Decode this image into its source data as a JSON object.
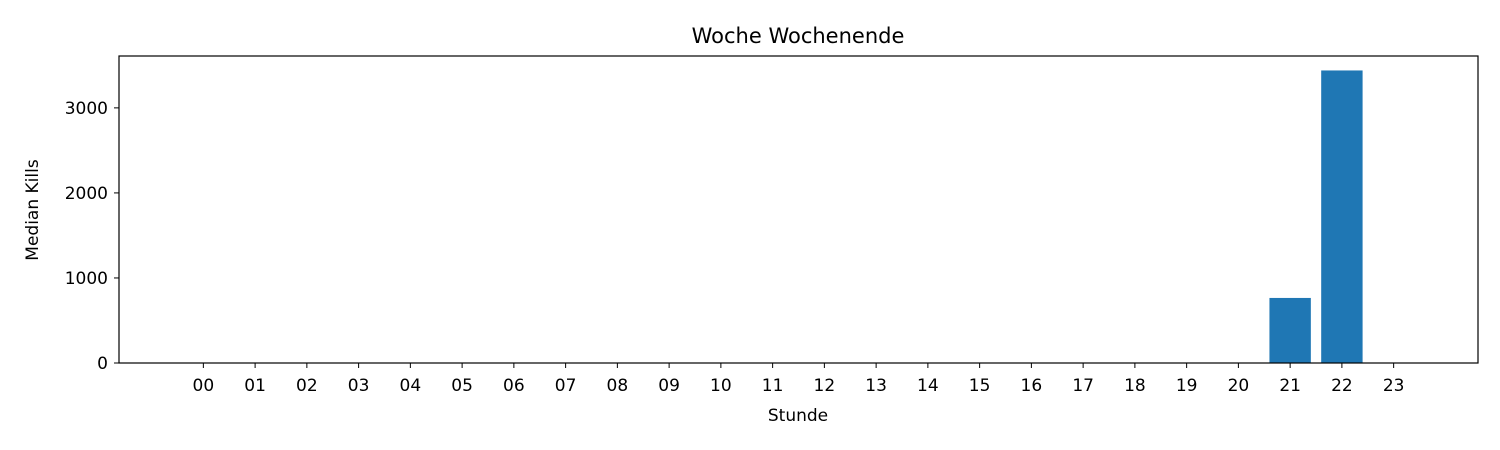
{
  "chart_data": {
    "type": "bar",
    "title": "Woche Wochenende",
    "xlabel": "Stunde",
    "ylabel": "Median Kills",
    "categories": [
      "00",
      "01",
      "02",
      "03",
      "04",
      "05",
      "06",
      "07",
      "08",
      "09",
      "10",
      "11",
      "12",
      "13",
      "14",
      "15",
      "16",
      "17",
      "18",
      "19",
      "20",
      "21",
      "22",
      "23"
    ],
    "values": [
      0,
      0,
      0,
      0,
      0,
      0,
      0,
      0,
      0,
      0,
      0,
      0,
      0,
      0,
      0,
      0,
      0,
      0,
      0,
      0,
      0,
      765,
      3440,
      0
    ],
    "ylim": [
      0,
      3610
    ],
    "yticks": [
      0,
      1000,
      2000,
      3000
    ],
    "bar_color": "#1f77b4",
    "grid": false,
    "legend": "none"
  }
}
